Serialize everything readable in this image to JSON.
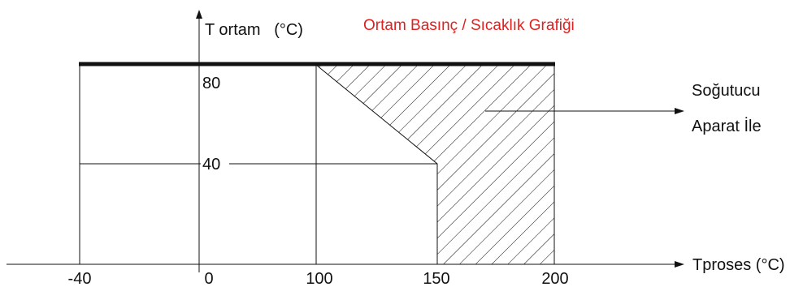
{
  "diagram": {
    "title": "Ortam Basınç / Sıcaklık Grafiği",
    "y_axis_label": "T ortam   (°C)",
    "x_axis_label": "Tproses (°C)",
    "x_ticks": [
      "-40",
      "0",
      "100",
      "150",
      "200"
    ],
    "y_ticks": [
      "80",
      "40"
    ],
    "annotation": {
      "line1": "Soğutucu",
      "line2": "Aparat İle"
    },
    "colors": {
      "title": "#e02020",
      "lines": "#111111",
      "hatch": "#111111",
      "background": "#ffffff"
    }
  }
}
